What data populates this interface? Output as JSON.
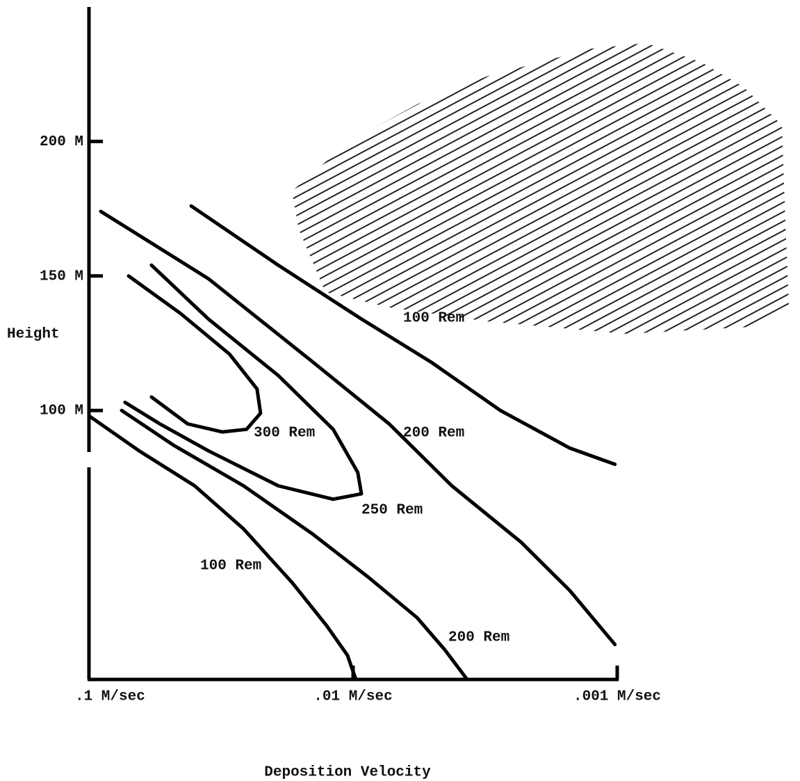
{
  "chart_data": {
    "type": "line",
    "x_label": "Deposition Velocity",
    "y_label": "Height",
    "xscale": "log",
    "xlim": [
      0.1,
      0.001
    ],
    "xticks": [
      {
        "value": 0.1,
        "label": ".1 M/sec"
      },
      {
        "value": 0.01,
        "label": ".01 M/sec"
      },
      {
        "value": 0.001,
        "label": ".001 M/sec"
      }
    ],
    "ylim": [
      0,
      250
    ],
    "yticks": [
      {
        "value": 100,
        "label": "100 M"
      },
      {
        "value": 150,
        "label": "150 M"
      },
      {
        "value": 200,
        "label": "200 M"
      }
    ],
    "series": [
      {
        "name": "100 Rem",
        "color": "#000000",
        "x": [
          0.041,
          0.0192,
          0.0093,
          0.00507,
          0.00277,
          0.00151,
          0.00102
        ],
        "values": [
          176,
          154,
          134,
          118,
          100,
          86,
          80
        ]
      },
      {
        "name": "200 Rem",
        "color": "#000000",
        "x": [
          0.0902,
          0.0353,
          0.0142,
          0.0073,
          0.00423,
          0.00231,
          0.00151,
          0.00102
        ],
        "values": [
          174,
          149,
          118,
          95,
          72,
          51,
          33,
          13
        ]
      },
      {
        "name": "250 Rem",
        "color": "#000000",
        "x": [
          0.058,
          0.0353,
          0.0192,
          0.0119,
          0.0096,
          0.0093,
          0.0119,
          0.0192,
          0.0353,
          0.0539,
          0.073
        ],
        "values": [
          154,
          134,
          113,
          93,
          77,
          69,
          67,
          72,
          85,
          95,
          103
        ]
      },
      {
        "name": "300 Rem",
        "color": "#000000",
        "x": [
          0.0708,
          0.0449,
          0.0294,
          0.0231,
          0.0224,
          0.0253,
          0.0313,
          0.0423,
          0.058
        ],
        "values": [
          150,
          136,
          121,
          108,
          99,
          93,
          92,
          95,
          105
        ]
      },
      {
        "name": "200 Rem",
        "color": "#000000",
        "x": [
          0.0752,
          0.0477,
          0.026,
          0.0142,
          0.00875,
          0.00573,
          0.00449,
          0.0037
        ],
        "values": [
          100,
          87,
          72,
          54,
          38,
          23,
          11,
          0
        ]
      },
      {
        "name": "100 Rem",
        "color": "#000000",
        "x": [
          0.1,
          0.0646,
          0.0398,
          0.026,
          0.017,
          0.0126,
          0.0105,
          0.00976
        ],
        "values": [
          98,
          85,
          72,
          56,
          36,
          20,
          9,
          0
        ]
      }
    ]
  }
}
